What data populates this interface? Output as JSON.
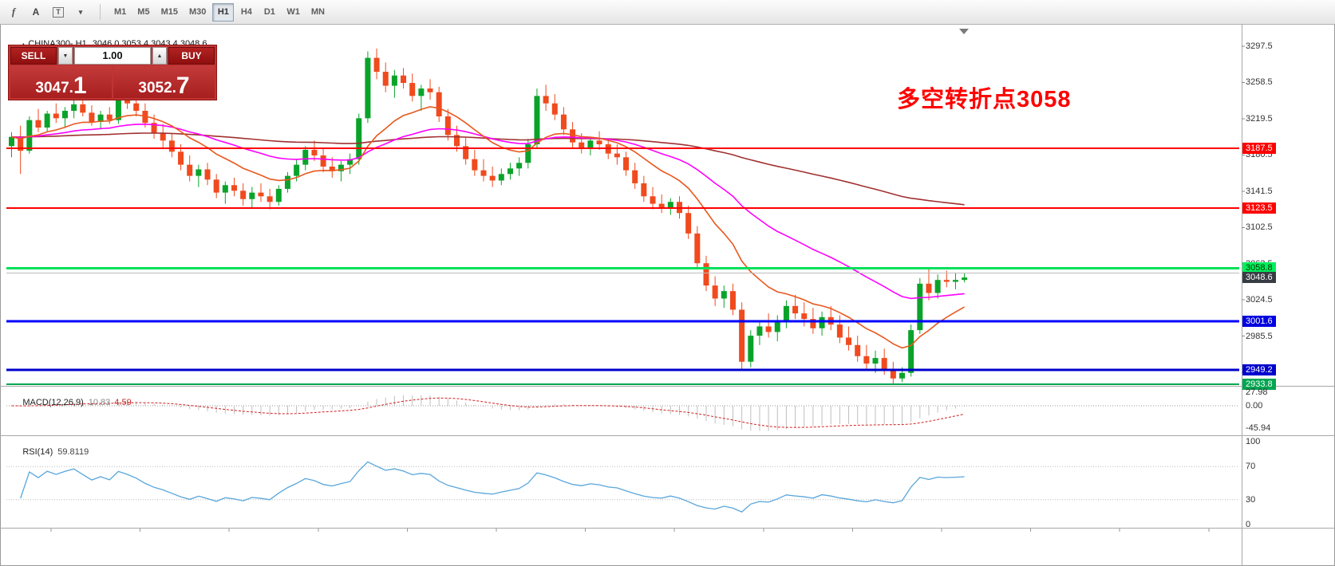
{
  "toolbar": {
    "tools": [
      {
        "label": "f",
        "name": "indicators"
      },
      {
        "label": "A",
        "name": "text-label"
      },
      {
        "label": "T",
        "name": "text-frame"
      },
      {
        "label": "▾",
        "name": "drawing-tools"
      }
    ],
    "timeframes": [
      {
        "label": "M1",
        "active": false
      },
      {
        "label": "M5",
        "active": false
      },
      {
        "label": "M15",
        "active": false
      },
      {
        "label": "M30",
        "active": false
      },
      {
        "label": "H1",
        "active": true
      },
      {
        "label": "H4",
        "active": false
      },
      {
        "label": "D1",
        "active": false
      },
      {
        "label": "W1",
        "active": false
      },
      {
        "label": "MN",
        "active": false
      }
    ]
  },
  "chart_header": {
    "collapse_icon": "▴",
    "symbol": "CHINA300-,H1",
    "ohlc": "3046.0 3053.4 3043.4 3048.6"
  },
  "trade_panel": {
    "sell_label": "SELL",
    "buy_label": "BUY",
    "volume": "1.00",
    "sell_price_main": "3047.",
    "sell_price_big": "1",
    "buy_price_main": "3052.",
    "buy_price_big": "7"
  },
  "annotation": {
    "text": "多空转折点3058",
    "color": "#ff0000"
  },
  "indicators": {
    "macd_label": "MACD(12,26,9)",
    "macd_value_main": "10.83",
    "macd_value_signal": "4.59",
    "macd_axis": [
      {
        "text": "27.98",
        "v": 27.98
      },
      {
        "text": "0.00",
        "v": 0
      },
      {
        "text": "-45.94",
        "v": -45.94
      }
    ],
    "rsi_label": "RSI(14)",
    "rsi_value": "59.8119",
    "rsi_axis": [
      {
        "text": "100",
        "v": 100
      },
      {
        "text": "70",
        "v": 70
      },
      {
        "text": "30",
        "v": 30
      },
      {
        "text": "0",
        "v": 0
      }
    ]
  },
  "axis": {
    "plain_labels": [
      3297.5,
      3258.5,
      3219.5,
      3180.5,
      3141.5,
      3102.5,
      3063.5,
      3024.5,
      2985.5,
      2946.5
    ],
    "badges": [
      {
        "text": "3187.5",
        "price": 3187.5,
        "bg": "#ff0000",
        "fg": "#ffffff"
      },
      {
        "text": "3123.5",
        "price": 3123.5,
        "bg": "#ff0000",
        "fg": "#ffffff"
      },
      {
        "text": "3058.8",
        "price": 3058.8,
        "bg": "#00ef5c",
        "fg": "#003300"
      },
      {
        "text": "3048.6",
        "price": 3048.6,
        "bg": "#383d44",
        "fg": "#ffffff"
      },
      {
        "text": "3001.6",
        "price": 3001.6,
        "bg": "#0000e0",
        "fg": "#ffffff"
      },
      {
        "text": "2949.2",
        "price": 2949.2,
        "bg": "#0000cd",
        "fg": "#ffffff"
      },
      {
        "text": "2933.8",
        "price": 2933.8,
        "bg": "#00a651",
        "fg": "#ffffff"
      }
    ]
  },
  "chart_data": {
    "type": "candlestick",
    "symbol": "CHINA300-",
    "timeframe": "H1",
    "current": {
      "open": 3046.0,
      "high": 3053.4,
      "low": 3043.4,
      "close": 3048.6,
      "bid": 3047.1,
      "ask": 3052.7
    },
    "ylim": [
      2925.0,
      3310.0
    ],
    "legend_position": "none",
    "grid": false,
    "colors": {
      "up": "#0aa32a",
      "down": "#f04a1e",
      "ma_fast": "#e8581e",
      "ma_mid": "#ff00ff",
      "ma_slow": "#a03030",
      "macd_signal": "#d02020",
      "macd_hist": "#bfbfbf",
      "rsi": "#58a6dc"
    },
    "hlines": [
      {
        "price": 3187.5,
        "color": "#ff0000",
        "width": 2
      },
      {
        "price": 3123.5,
        "color": "#ff0000",
        "width": 2
      },
      {
        "price": 3058.8,
        "color": "#00e05a",
        "width": 3
      },
      {
        "price": 3053.4,
        "color": "#bdbdbd",
        "width": 1
      },
      {
        "price": 3001.6,
        "color": "#0000ff",
        "width": 3
      },
      {
        "price": 2949.2,
        "color": "#0000cd",
        "width": 3
      },
      {
        "price": 2933.8,
        "color": "#00a651",
        "width": 2
      }
    ],
    "ohlc": [
      [
        3190,
        3205,
        3178,
        3200
      ],
      [
        3200,
        3212,
        3160,
        3185
      ],
      [
        3185,
        3222,
        3182,
        3218
      ],
      [
        3218,
        3230,
        3205,
        3210
      ],
      [
        3210,
        3228,
        3206,
        3225
      ],
      [
        3225,
        3236,
        3215,
        3220
      ],
      [
        3220,
        3232,
        3210,
        3228
      ],
      [
        3228,
        3240,
        3220,
        3235
      ],
      [
        3235,
        3242,
        3222,
        3226
      ],
      [
        3226,
        3234,
        3212,
        3216
      ],
      [
        3216,
        3228,
        3208,
        3224
      ],
      [
        3224,
        3232,
        3214,
        3218
      ],
      [
        3218,
        3248,
        3214,
        3242
      ],
      [
        3242,
        3250,
        3230,
        3236
      ],
      [
        3236,
        3244,
        3222,
        3228
      ],
      [
        3228,
        3236,
        3210,
        3215
      ],
      [
        3215,
        3224,
        3198,
        3204
      ],
      [
        3204,
        3214,
        3188,
        3196
      ],
      [
        3196,
        3204,
        3178,
        3184
      ],
      [
        3184,
        3192,
        3164,
        3170
      ],
      [
        3170,
        3180,
        3152,
        3158
      ],
      [
        3158,
        3170,
        3146,
        3165
      ],
      [
        3165,
        3172,
        3148,
        3154
      ],
      [
        3154,
        3160,
        3134,
        3140
      ],
      [
        3140,
        3152,
        3128,
        3148
      ],
      [
        3148,
        3156,
        3136,
        3142
      ],
      [
        3142,
        3150,
        3126,
        3133
      ],
      [
        3133,
        3146,
        3124,
        3140
      ],
      [
        3140,
        3150,
        3130,
        3136
      ],
      [
        3136,
        3144,
        3122,
        3130
      ],
      [
        3130,
        3148,
        3126,
        3144
      ],
      [
        3144,
        3162,
        3140,
        3158
      ],
      [
        3158,
        3176,
        3152,
        3170
      ],
      [
        3170,
        3190,
        3164,
        3186
      ],
      [
        3186,
        3196,
        3174,
        3180
      ],
      [
        3180,
        3188,
        3162,
        3168
      ],
      [
        3168,
        3178,
        3156,
        3163
      ],
      [
        3163,
        3174,
        3152,
        3170
      ],
      [
        3170,
        3182,
        3160,
        3176
      ],
      [
        3176,
        3225,
        3170,
        3220
      ],
      [
        3220,
        3292,
        3215,
        3285
      ],
      [
        3285,
        3295,
        3262,
        3270
      ],
      [
        3270,
        3280,
        3248,
        3255
      ],
      [
        3255,
        3272,
        3242,
        3266
      ],
      [
        3266,
        3274,
        3252,
        3258
      ],
      [
        3258,
        3268,
        3238,
        3244
      ],
      [
        3244,
        3256,
        3228,
        3252
      ],
      [
        3252,
        3262,
        3240,
        3248
      ],
      [
        3248,
        3254,
        3216,
        3222
      ],
      [
        3222,
        3230,
        3196,
        3202
      ],
      [
        3202,
        3212,
        3184,
        3190
      ],
      [
        3190,
        3200,
        3170,
        3176
      ],
      [
        3176,
        3186,
        3158,
        3164
      ],
      [
        3164,
        3176,
        3152,
        3158
      ],
      [
        3158,
        3168,
        3146,
        3153
      ],
      [
        3153,
        3166,
        3148,
        3160
      ],
      [
        3160,
        3172,
        3154,
        3166
      ],
      [
        3166,
        3178,
        3158,
        3172
      ],
      [
        3172,
        3198,
        3166,
        3192
      ],
      [
        3192,
        3252,
        3188,
        3244
      ],
      [
        3244,
        3256,
        3228,
        3236
      ],
      [
        3236,
        3246,
        3218,
        3224
      ],
      [
        3224,
        3232,
        3202,
        3208
      ],
      [
        3208,
        3216,
        3188,
        3194
      ],
      [
        3194,
        3204,
        3182,
        3188
      ],
      [
        3188,
        3200,
        3180,
        3196
      ],
      [
        3196,
        3206,
        3186,
        3192
      ],
      [
        3192,
        3198,
        3176,
        3182
      ],
      [
        3182,
        3192,
        3170,
        3178
      ],
      [
        3178,
        3184,
        3158,
        3164
      ],
      [
        3164,
        3172,
        3144,
        3150
      ],
      [
        3150,
        3158,
        3130,
        3136
      ],
      [
        3136,
        3146,
        3122,
        3128
      ],
      [
        3128,
        3138,
        3118,
        3124
      ],
      [
        3124,
        3134,
        3116,
        3130
      ],
      [
        3130,
        3136,
        3112,
        3118
      ],
      [
        3118,
        3126,
        3090,
        3096
      ],
      [
        3096,
        3104,
        3058,
        3064
      ],
      [
        3064,
        3072,
        3034,
        3040
      ],
      [
        3040,
        3050,
        3018,
        3026
      ],
      [
        3026,
        3040,
        3016,
        3034
      ],
      [
        3034,
        3042,
        3008,
        3014
      ],
      [
        3014,
        3022,
        2950,
        2958
      ],
      [
        2958,
        2992,
        2952,
        2986
      ],
      [
        2986,
        3002,
        2976,
        2996
      ],
      [
        2996,
        3010,
        2984,
        2990
      ],
      [
        2990,
        3008,
        2980,
        3002
      ],
      [
        3002,
        3024,
        2994,
        3018
      ],
      [
        3018,
        3030,
        3004,
        3010
      ],
      [
        3010,
        3022,
        2996,
        3004
      ],
      [
        3004,
        3016,
        2988,
        2994
      ],
      [
        2994,
        3012,
        2986,
        3006
      ],
      [
        3006,
        3018,
        2992,
        2998
      ],
      [
        2998,
        3008,
        2978,
        2984
      ],
      [
        2984,
        2996,
        2970,
        2976
      ],
      [
        2976,
        2986,
        2958,
        2964
      ],
      [
        2964,
        2976,
        2950,
        2956
      ],
      [
        2956,
        2970,
        2946,
        2962
      ],
      [
        2962,
        2972,
        2944,
        2950
      ],
      [
        2950,
        2958,
        2933.8,
        2940
      ],
      [
        2940,
        2952,
        2936,
        2946
      ],
      [
        2946,
        2998,
        2942,
        2992
      ],
      [
        2992,
        3048,
        2988,
        3042
      ],
      [
        3042,
        3058,
        3024,
        3032
      ],
      [
        3032,
        3052,
        3026,
        3046
      ],
      [
        3046,
        3056,
        3038,
        3044
      ],
      [
        3044,
        3054,
        3036,
        3046
      ],
      [
        3046,
        3053.4,
        3043.4,
        3048.6
      ]
    ]
  }
}
